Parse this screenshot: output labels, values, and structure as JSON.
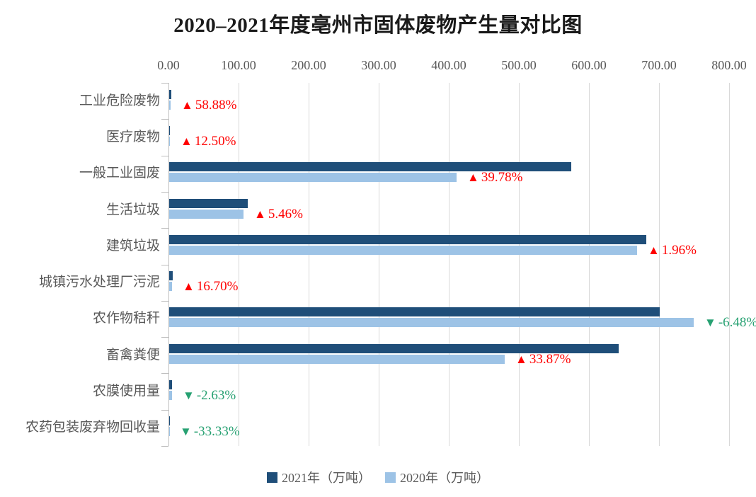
{
  "title": "2020–2021年度亳州市固体废物产生量对比图",
  "legend": [
    {
      "label": "2021年（万吨）",
      "color": "#1f4e79"
    },
    {
      "label": "2020年（万吨）",
      "color": "#9dc3e6"
    }
  ],
  "colors": {
    "bar_2021": "#1f4e79",
    "bar_2020": "#9dc3e6",
    "increase": "#ff0000",
    "decrease": "#27a172",
    "gridline": "#d9d9d9",
    "axis_line": "#bfbfbf",
    "tick_text": "#595959",
    "category_text": "#595959",
    "title_text": "#1a1a1a"
  },
  "chart_data": {
    "type": "bar",
    "orientation": "horizontal",
    "title": "2020–2021年度亳州市固体废物产生量对比图",
    "categories": [
      "工业危险废物",
      "医疗废物",
      "一般工业固废",
      "生活垃圾",
      "建筑垃圾",
      "城镇污水处理厂污泥",
      "农作物秸秆",
      "畜禽粪便",
      "农膜使用量",
      "农药包装废弃物回收量"
    ],
    "series": [
      {
        "name": "2021年（万吨）",
        "values": [
          2.86,
          0.9,
          573.4,
          112.0,
          680.9,
          4.9,
          700.0,
          641.5,
          3.7,
          0.2
        ]
      },
      {
        "name": "2020年（万吨）",
        "values": [
          1.8,
          0.8,
          410.2,
          106.2,
          667.8,
          4.2,
          748.5,
          479.2,
          3.8,
          0.3
        ]
      }
    ],
    "annotations": [
      {
        "direction": "up",
        "text": "58.88%"
      },
      {
        "direction": "up",
        "text": "12.50%"
      },
      {
        "direction": "up",
        "text": "39.78%"
      },
      {
        "direction": "up",
        "text": "5.46%"
      },
      {
        "direction": "up",
        "text": "1.96%"
      },
      {
        "direction": "up",
        "text": "16.70%"
      },
      {
        "direction": "down",
        "text": "-6.48%"
      },
      {
        "direction": "up",
        "text": "33.87%"
      },
      {
        "direction": "down",
        "text": "-2.63%"
      },
      {
        "direction": "down",
        "text": "-33.33%"
      }
    ],
    "x_axis": {
      "min": 0,
      "max": 800,
      "tick_interval": 100,
      "tick_labels": [
        "0.00",
        "100.00",
        "200.00",
        "300.00",
        "400.00",
        "500.00",
        "600.00",
        "700.00",
        "800.00"
      ]
    },
    "grid": true,
    "legend_position": "bottom"
  }
}
